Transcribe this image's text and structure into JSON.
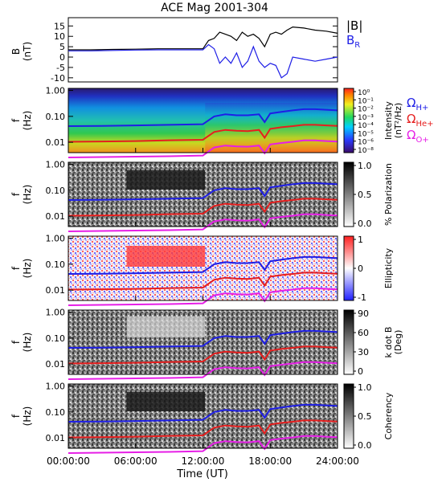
{
  "title": "ACE Mag 2001-304",
  "xlabel": "Time (UT)",
  "x_ticks": [
    "00:00:00",
    "06:00:00",
    "12:00:00",
    "18:00:00",
    "24:00:00"
  ],
  "panel_b": {
    "ylabel_line1": "B",
    "ylabel_line2": "(nT)",
    "y_ticks": [
      "15",
      "10",
      "5",
      "0",
      "-5",
      "-10"
    ],
    "legend_total": "|B|",
    "legend_radial": "B",
    "legend_radial_sub": "R"
  },
  "freq_ylabel_line1": "f",
  "freq_ylabel_line2": "(Hz)",
  "freq_ticks": [
    "1.00",
    "0.10",
    "0.01"
  ],
  "panels": [
    {
      "id": "intensity",
      "cbar_label_1": "Intensity",
      "cbar_label_2": "(nT²/Hz)",
      "cbar_ticks": [
        "10⁰",
        "10⁻¹",
        "10⁻²",
        "10⁻³",
        "10⁻⁴",
        "10⁻⁵",
        "10⁻⁶",
        "10⁻⁸"
      ]
    },
    {
      "id": "polarization",
      "cbar_label_1": "% Polarization",
      "cbar_label_2": "",
      "cbar_ticks": [
        "1.0",
        "0.5",
        "0.0"
      ]
    },
    {
      "id": "ellipticity",
      "cbar_label_1": "Ellipticity",
      "cbar_label_2": "",
      "cbar_ticks": [
        "1",
        "0",
        "-1"
      ]
    },
    {
      "id": "kdotb",
      "cbar_label_1": "k dot B",
      "cbar_label_2": "(Deg)",
      "cbar_ticks": [
        "90",
        "60",
        "30",
        "0"
      ]
    },
    {
      "id": "coherency",
      "cbar_label_1": "Coherency",
      "cbar_label_2": "",
      "cbar_ticks": [
        "1.0",
        "0.5",
        "0.0"
      ]
    }
  ],
  "gyro_legend": [
    {
      "symbol": "Ω",
      "sub": "H+",
      "color": "#1e1ee6"
    },
    {
      "symbol": "Ω",
      "sub": "He+",
      "color": "#e61e1e"
    },
    {
      "symbol": "Ω",
      "sub": "O+",
      "color": "#e61ee6"
    }
  ],
  "chart_data": {
    "type": "line",
    "title": "ACE Mag 2001-304",
    "xlabel": "Time (UT)",
    "xlim_hours": [
      0,
      24
    ],
    "panel_b": {
      "ylabel": "B (nT)",
      "ylim": [
        -12,
        19
      ],
      "series": [
        {
          "name": "|B|",
          "color": "#000000",
          "x": [
            0,
            2,
            4,
            6,
            8,
            10,
            12,
            12.5,
            13,
            13.5,
            14,
            14.5,
            15,
            15.5,
            16,
            16.5,
            17,
            17.5,
            18,
            18.5,
            19,
            19.5,
            20,
            21,
            22,
            23,
            24
          ],
          "y": [
            3.5,
            3.5,
            3.7,
            3.8,
            4,
            4,
            4,
            8,
            9,
            12,
            11,
            10,
            8,
            12,
            10,
            11,
            9,
            5,
            11,
            12,
            11,
            13,
            14.5,
            14,
            13,
            12.5,
            11.5
          ]
        },
        {
          "name": "B",
          "color": "#1e1ee6",
          "x": [
            0,
            2,
            4,
            6,
            8,
            10,
            12,
            12.5,
            13,
            13.5,
            14,
            14.5,
            15,
            15.5,
            16,
            16.5,
            17,
            17.5,
            18,
            18.5,
            19,
            19.5,
            20,
            21,
            22,
            23,
            24
          ],
          "y": [
            3,
            3,
            3.2,
            3.4,
            3.5,
            3.5,
            3.5,
            6,
            4,
            -3,
            0,
            -3,
            2,
            -5,
            -2,
            5,
            -2,
            -5,
            -3,
            -4,
            -10,
            -8,
            0,
            -1,
            -2,
            -1,
            0
          ]
        }
      ]
    },
    "gyrofrequencies_hz": {
      "x": [
        0,
        3,
        6,
        9,
        12,
        13,
        14,
        15,
        16,
        17,
        17.5,
        18,
        19,
        20,
        21,
        22,
        23,
        24
      ],
      "H+": [
        0.042,
        0.043,
        0.045,
        0.047,
        0.05,
        0.1,
        0.12,
        0.11,
        0.11,
        0.12,
        0.06,
        0.13,
        0.15,
        0.17,
        0.19,
        0.19,
        0.18,
        0.17
      ],
      "He+": [
        0.0105,
        0.0108,
        0.0112,
        0.012,
        0.0125,
        0.025,
        0.03,
        0.028,
        0.027,
        0.03,
        0.015,
        0.033,
        0.038,
        0.042,
        0.047,
        0.047,
        0.045,
        0.043
      ],
      "O+": [
        0.0026,
        0.0027,
        0.0028,
        0.0029,
        0.0031,
        0.0063,
        0.0075,
        0.007,
        0.0068,
        0.0075,
        0.0038,
        0.0083,
        0.0094,
        0.0105,
        0.0118,
        0.0118,
        0.0112,
        0.0107
      ]
    },
    "freq_ylim_hz": [
      0.004,
      1.2
    ],
    "freq_scale": "log"
  }
}
